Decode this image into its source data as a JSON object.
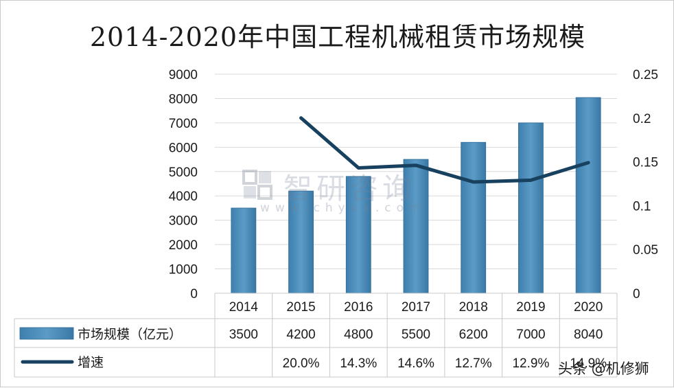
{
  "chart_data": {
    "type": "bar",
    "title": "2014-2020年中国工程机械租赁市场规模",
    "categories": [
      "2014",
      "2015",
      "2016",
      "2017",
      "2018",
      "2019",
      "2020"
    ],
    "y_left": {
      "range": [
        0,
        9000
      ],
      "ticks": [
        "0",
        "1000",
        "2000",
        "3000",
        "4000",
        "5000",
        "6000",
        "7000",
        "8000",
        "9000"
      ]
    },
    "y_right": {
      "range": [
        0,
        0.25
      ],
      "ticks": [
        "0",
        "0.05",
        "0.1",
        "0.15",
        "0.2",
        "0.25"
      ]
    },
    "grid": true,
    "legend_placement": "data-table-left",
    "series": [
      {
        "name": "市场规模（亿元）",
        "kind": "bar",
        "axis": "left",
        "color": "#5b9bc6",
        "values": [
          3500,
          4200,
          4800,
          5500,
          6200,
          7000,
          8040
        ],
        "table_labels": [
          "3500",
          "4200",
          "4800",
          "5500",
          "6200",
          "7000",
          "8040"
        ]
      },
      {
        "name": "增速",
        "kind": "line",
        "axis": "right",
        "color": "#17415f",
        "values": [
          null,
          0.2,
          0.143,
          0.146,
          0.127,
          0.129,
          0.149
        ],
        "table_labels": [
          "",
          "20.0%",
          "14.3%",
          "14.6%",
          "12.7%",
          "12.9%",
          "14.9%"
        ]
      }
    ]
  },
  "watermark": {
    "name": "智研咨询",
    "url": "www.chyxx.com",
    "logo_icon": "chyxx-logo-icon"
  },
  "source_tag": "头条 @机修狮"
}
